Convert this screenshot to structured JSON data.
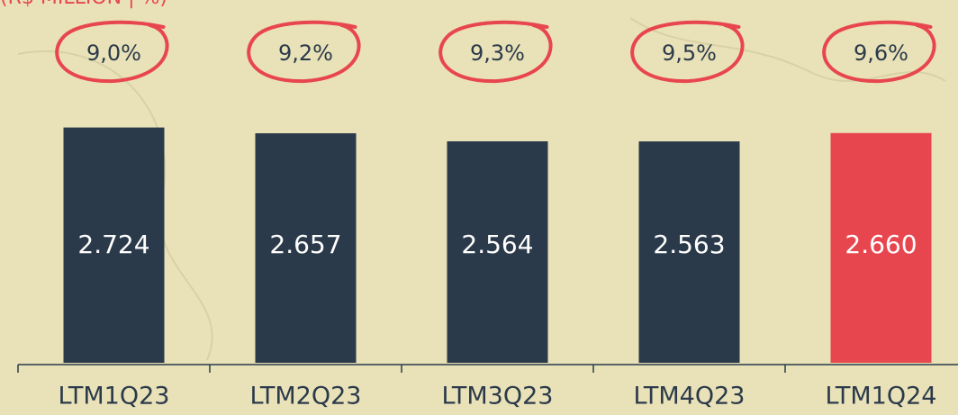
{
  "chart_data": {
    "type": "bar",
    "subtitle": "(R$ MILLION | %)",
    "categories": [
      "LTM1Q23",
      "LTM2Q23",
      "LTM3Q23",
      "LTM4Q23",
      "LTM1Q24"
    ],
    "values": [
      2724,
      2657,
      2564,
      2563,
      2660
    ],
    "value_labels": [
      "2.724",
      "2.657",
      "2.564",
      "2.563",
      "2.660"
    ],
    "colors": [
      "#2b3a4a",
      "#2b3a4a",
      "#2b3a4a",
      "#2b3a4a",
      "#e8464f"
    ],
    "margins": [
      9.0,
      9.2,
      9.3,
      9.5,
      9.6
    ],
    "margin_labels": [
      "9,0%",
      "9,2%",
      "9,3%",
      "9,5%",
      "9,6%"
    ],
    "margin_color": "#e8464f",
    "ylim": [
      0,
      4200
    ]
  }
}
